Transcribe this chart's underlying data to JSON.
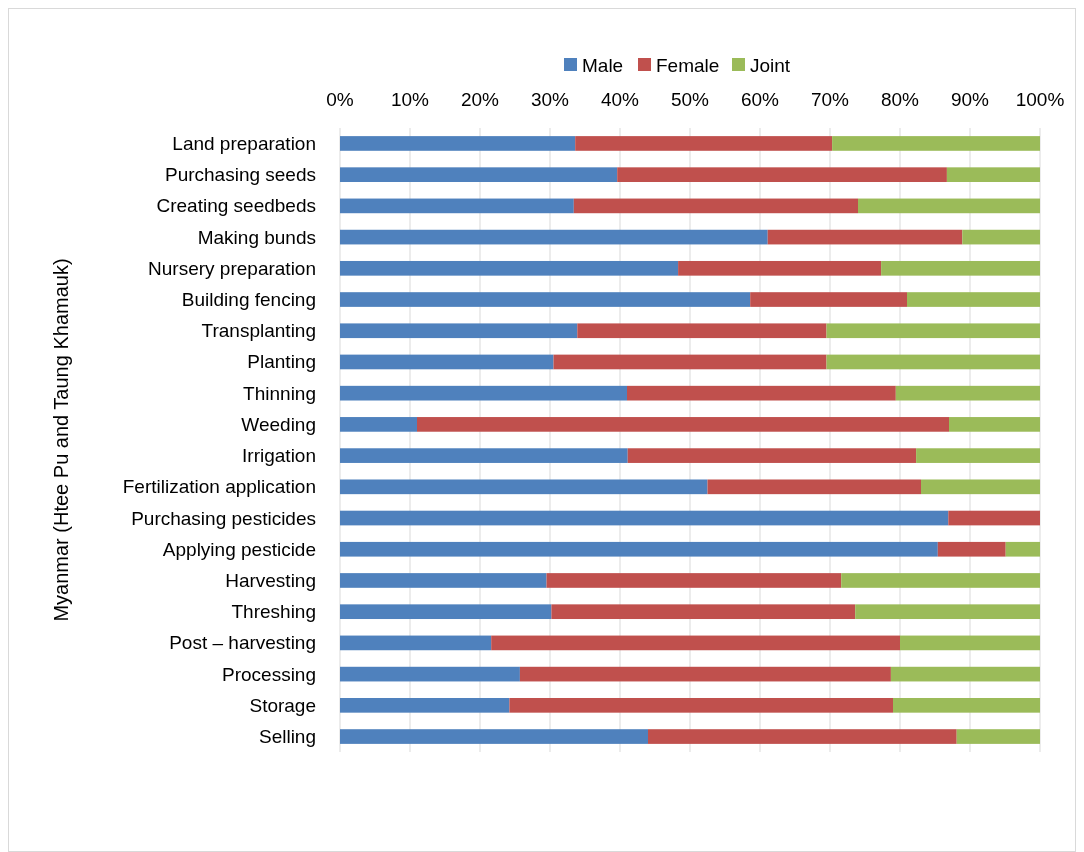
{
  "chart_data": {
    "type": "bar",
    "orientation": "horizontal",
    "stacked": true,
    "ylabel": "Myanmar (Htee Pu and Taung Khamauk)",
    "categories": [
      "Land preparation",
      "Purchasing seeds",
      "Creating seedbeds",
      "Making bunds",
      "Nursery preparation",
      "Building fencing",
      "Transplanting",
      "Planting",
      "Thinning",
      "Weeding",
      "Irrigation",
      "Fertilization application",
      "Purchasing pesticides",
      "Applying pesticide",
      "Harvesting",
      "Threshing",
      "Post – harvesting",
      "Processing",
      "Storage",
      "Selling"
    ],
    "series": [
      {
        "name": "Male",
        "color": "#4f81bd",
        "values": [
          33.6,
          39.6,
          33.4,
          61.1,
          48.3,
          58.6,
          33.9,
          30.5,
          41.0,
          11.0,
          41.1,
          52.5,
          86.9,
          85.4,
          29.5,
          30.2,
          21.6,
          25.7,
          24.2,
          44.0
        ]
      },
      {
        "name": "Female",
        "color": "#c0504d",
        "values": [
          36.7,
          47.1,
          40.6,
          27.8,
          29.0,
          22.4,
          35.6,
          39.0,
          38.4,
          76.0,
          41.2,
          30.5,
          13.1,
          9.7,
          42.1,
          43.4,
          58.4,
          53.0,
          54.8,
          44.1
        ]
      },
      {
        "name": "Joint",
        "color": "#9bbb59",
        "values": [
          29.7,
          13.3,
          26.0,
          11.1,
          22.7,
          19.0,
          30.5,
          30.5,
          20.6,
          13.0,
          17.7,
          17.0,
          0,
          4.9,
          28.4,
          26.4,
          20.0,
          21.3,
          21.0,
          11.9
        ]
      }
    ],
    "xlim": [
      0,
      100
    ],
    "xticks": [
      {
        "value": 0,
        "label": "0%"
      },
      {
        "value": 10,
        "label": "10%"
      },
      {
        "value": 20,
        "label": "20%"
      },
      {
        "value": 30,
        "label": "30%"
      },
      {
        "value": 40,
        "label": "40%"
      },
      {
        "value": 50,
        "label": "50%"
      },
      {
        "value": 60,
        "label": "60%"
      },
      {
        "value": 70,
        "label": "70%"
      },
      {
        "value": 80,
        "label": "80%"
      },
      {
        "value": 90,
        "label": "90%"
      },
      {
        "value": 100,
        "label": "100%"
      }
    ],
    "grid": "x",
    "legend": "top"
  }
}
